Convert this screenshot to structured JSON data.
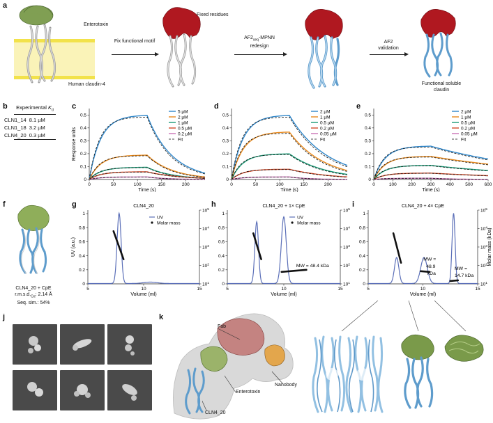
{
  "panels": [
    "a",
    "b",
    "c",
    "d",
    "e",
    "f",
    "g",
    "h",
    "i",
    "j",
    "k"
  ],
  "panel_a": {
    "labels": {
      "enterotoxin": "Enterotoxin",
      "claudin": "Human claudin-4",
      "fixed": "Fixed residues",
      "step1": "Fix functional motif",
      "step2_pre": "AF2",
      "step2_sub": "seq",
      "step2_post": "-MPNN",
      "step2_line2": "redesign",
      "step3_l1": "AF2",
      "step3_l2": "validation",
      "final_l1": "Functional soluble",
      "final_l2": "claudin"
    },
    "colors": {
      "toxin": "#7a9a4a",
      "membrane": "#f2e24a",
      "fixed": "#b01820",
      "designed": "#7fb6dd",
      "native": "#d8d8d8"
    }
  },
  "panel_b": {
    "header_pre": "Experimental ",
    "header_k": "K",
    "header_sub": "d",
    "rows": [
      {
        "name": "CLN1_14",
        "kd": "8.1 µM"
      },
      {
        "name": "CLN1_18",
        "kd": "3.2 µM"
      },
      {
        "name": "CLN4_20",
        "kd": "0.3 µM"
      }
    ]
  },
  "spr_common": {
    "ylabel": "Response units",
    "xlabel": "Time (s)",
    "fit_label": "Fit",
    "colors": [
      "#2f86c9",
      "#e8891c",
      "#1a9a76",
      "#d24b2a",
      "#c971b6"
    ]
  },
  "chart_data": [
    {
      "panel": "c",
      "type": "line",
      "xlabel": "Time (s)",
      "ylabel": "Response units",
      "xlim": [
        0,
        240
      ],
      "ylim": [
        0,
        0.55
      ],
      "xticks": [
        0,
        50,
        100,
        150,
        200
      ],
      "yticks": [
        0,
        0.1,
        0.2,
        0.3,
        0.4,
        0.5
      ],
      "t_on": 120,
      "series": [
        {
          "name": "5 µM",
          "plateau": 0.5,
          "final": 0.05
        },
        {
          "name": "2 µM",
          "plateau": 0.19,
          "final": 0.02
        },
        {
          "name": "1 µM",
          "plateau": 0.095,
          "final": 0.01
        },
        {
          "name": "0.5 µM",
          "plateau": 0.06,
          "final": 0.01
        },
        {
          "name": "0.2 µM",
          "plateau": 0.02,
          "final": 0.0
        }
      ]
    },
    {
      "panel": "d",
      "type": "line",
      "xlabel": "Time (s)",
      "ylabel": "",
      "xlim": [
        0,
        240
      ],
      "ylim": [
        0,
        0.55
      ],
      "xticks": [
        0,
        50,
        100,
        150,
        200
      ],
      "yticks": [
        0,
        0.1,
        0.2,
        0.3,
        0.4,
        0.5
      ],
      "t_on": 120,
      "series": [
        {
          "name": "2 µM",
          "plateau": 0.5,
          "final": 0.11
        },
        {
          "name": "1 µM",
          "plateau": 0.37,
          "final": 0.07
        },
        {
          "name": "0.5 µM",
          "plateau": 0.2,
          "final": 0.04
        },
        {
          "name": "0.2 µM",
          "plateau": 0.08,
          "final": 0.02
        },
        {
          "name": "0.05 µM",
          "plateau": 0.02,
          "final": 0.0
        }
      ]
    },
    {
      "panel": "e",
      "type": "line",
      "xlabel": "Time (s)",
      "ylabel": "",
      "xlim": [
        0,
        600
      ],
      "ylim": [
        0,
        0.55
      ],
      "xticks": [
        0,
        100,
        200,
        300,
        400,
        500,
        600
      ],
      "yticks": [
        0,
        0.1,
        0.2,
        0.3,
        0.4,
        0.5
      ],
      "t_on": 300,
      "series": [
        {
          "name": "2 µM",
          "plateau": 0.26,
          "final": 0.16
        },
        {
          "name": "1 µM",
          "plateau": 0.18,
          "final": 0.12
        },
        {
          "name": "0.5 µM",
          "plateau": 0.11,
          "final": 0.07
        },
        {
          "name": "0.2 µM",
          "plateau": 0.05,
          "final": 0.03
        },
        {
          "name": "0.05 µM",
          "plateau": 0.01,
          "final": 0.0
        }
      ]
    },
    {
      "panel": "g",
      "type": "line",
      "title": "CLN4_20",
      "xlabel": "Volume (ml)",
      "ylabel": "UV (a.u.)",
      "xlim": [
        5,
        15
      ],
      "ylim": [
        0,
        1.05
      ],
      "xticks": [
        5,
        10,
        15
      ],
      "yticks": [
        0,
        0.2,
        0.4,
        0.6,
        0.8,
        1.0
      ],
      "y2ticks": [
        "10",
        "10",
        "10",
        "10",
        "10"
      ],
      "y2exp": [
        "1",
        "2",
        "3",
        "4",
        "5"
      ],
      "peaks": [
        {
          "x": 7.8,
          "h": 1.0,
          "w": 0.18
        },
        {
          "x": 10.6,
          "h": 0.02,
          "w": 0.6
        }
      ],
      "mass_segments": [
        {
          "x0": 7.3,
          "x1": 8.2,
          "y0": 0.75,
          "y1": 0.35
        }
      ],
      "legend": [
        "UV",
        "Molar mass"
      ],
      "annotations": []
    },
    {
      "panel": "h",
      "type": "line",
      "title": "CLN4_20 + 1× CpE",
      "xlabel": "Volume (ml)",
      "ylabel": "",
      "xlim": [
        5,
        15
      ],
      "ylim": [
        0,
        1.05
      ],
      "xticks": [
        5,
        10,
        15
      ],
      "yticks": [
        0,
        0.2,
        0.4,
        0.6,
        0.8,
        1.0
      ],
      "y2ticks": [
        "10",
        "10",
        "10",
        "10",
        "10"
      ],
      "y2exp": [
        "1",
        "2",
        "3",
        "4",
        "5"
      ],
      "peaks": [
        {
          "x": 7.6,
          "h": 0.88,
          "w": 0.16
        },
        {
          "x": 10.0,
          "h": 0.95,
          "w": 0.22
        }
      ],
      "mass_segments": [
        {
          "x0": 7.3,
          "x1": 8.0,
          "y0": 0.72,
          "y1": 0.35
        },
        {
          "x0": 9.8,
          "x1": 12.0,
          "y0": 0.17,
          "y1": 0.2
        }
      ],
      "legend": [
        "UV",
        "Molar mass"
      ],
      "annotations": [
        "MW = 48.4 kDa"
      ]
    },
    {
      "panel": "i",
      "type": "line",
      "title": "CLN4_20 + 4× CpE",
      "xlabel": "Volume (ml)",
      "ylabel": "Molar mass (kDa)",
      "xlim": [
        5,
        15
      ],
      "ylim": [
        0,
        1.05
      ],
      "xticks": [
        5,
        10,
        15
      ],
      "yticks": [
        0,
        0.2,
        0.4,
        0.6,
        0.8,
        1.0
      ],
      "y2ticks": [
        "10",
        "10",
        "10",
        "10",
        "10"
      ],
      "y2exp": [
        "1",
        "2",
        "3",
        "4",
        "5"
      ],
      "peaks": [
        {
          "x": 7.6,
          "h": 0.37,
          "w": 0.2
        },
        {
          "x": 10.1,
          "h": 0.37,
          "w": 0.3
        },
        {
          "x": 12.8,
          "h": 1.0,
          "w": 0.14
        }
      ],
      "mass_segments": [
        {
          "x0": 7.3,
          "x1": 8.0,
          "y0": 0.72,
          "y1": 0.3
        },
        {
          "x0": 9.8,
          "x1": 10.6,
          "y0": 0.18,
          "y1": 0.17
        },
        {
          "x0": 12.5,
          "x1": 13.2,
          "y0": 0.04,
          "y1": 0.05
        }
      ],
      "legend": [],
      "annotations": [
        "MW =",
        "48.9",
        "kDa",
        "MW =",
        "14.7 kDa"
      ]
    }
  ],
  "panel_f": {
    "l1": "CLN4_20 + CpE",
    "l2_pre": "r.m.s.d.",
    "l2_sub": "Cα",
    "l2_post": ": 2.14 Å",
    "l3": "Seq. sim.: 54%"
  },
  "panel_k": {
    "fab": "Fab",
    "nanobody": "Nanobody",
    "enterotoxin": "Enterotoxin",
    "cln": "CLN4_20"
  }
}
